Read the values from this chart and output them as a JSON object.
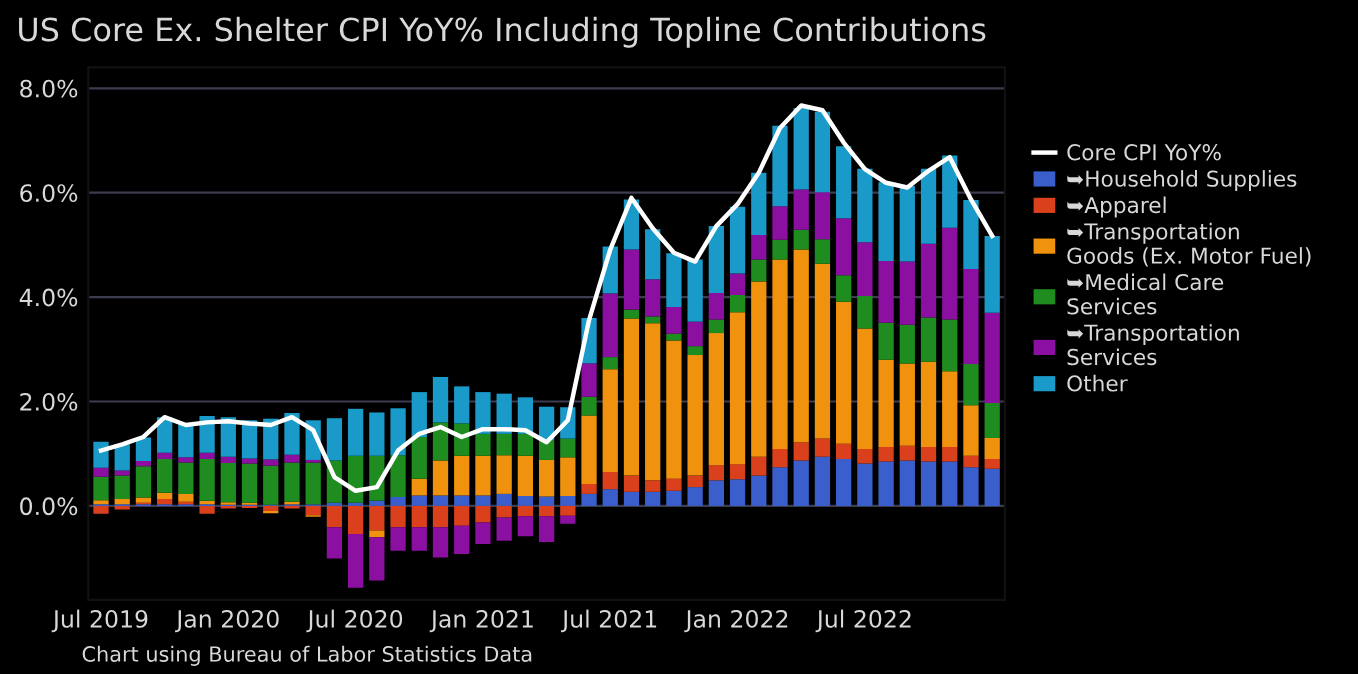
{
  "chart_data": {
    "type": "bar",
    "stacked": true,
    "title": "US Core Ex. Shelter CPI YoY% Including Topline Contributions",
    "categories": [
      "Jul 2019",
      null,
      null,
      null,
      null,
      null,
      "Jan 2020",
      null,
      null,
      null,
      null,
      null,
      "Jul 2020",
      null,
      null,
      null,
      null,
      null,
      "Jan 2021",
      null,
      null,
      null,
      null,
      null,
      "Jul 2021",
      null,
      null,
      null,
      null,
      null,
      "Jan 2022",
      null,
      null,
      null,
      null,
      null,
      "Jul 2022",
      null,
      null,
      null,
      null,
      null,
      null
    ],
    "series": [
      {
        "name": "Core CPI YoY%",
        "type": "line",
        "color": "#ffffff",
        "values": [
          1.06,
          1.18,
          1.32,
          1.7,
          1.55,
          1.6,
          1.62,
          1.58,
          1.55,
          1.7,
          1.45,
          0.55,
          0.29,
          0.36,
          1.06,
          1.38,
          1.51,
          1.32,
          1.47,
          1.47,
          1.45,
          1.22,
          1.64,
          3.56,
          4.91,
          5.9,
          5.32,
          4.85,
          4.68,
          5.36,
          5.78,
          6.38,
          7.24,
          7.67,
          7.58,
          6.96,
          6.45,
          6.19,
          6.1,
          6.42,
          6.68,
          5.87,
          5.17
        ]
      },
      {
        "name": "➥Household Supplies",
        "color": "#3a5fcd",
        "values": [
          0.03,
          0.03,
          0.03,
          0.03,
          0.03,
          0.03,
          0.02,
          0.02,
          0.02,
          0.03,
          0.03,
          0.06,
          0.06,
          0.1,
          0.17,
          0.2,
          0.2,
          0.2,
          0.2,
          0.23,
          0.19,
          0.18,
          0.19,
          0.23,
          0.32,
          0.27,
          0.27,
          0.29,
          0.36,
          0.49,
          0.51,
          0.58,
          0.74,
          0.87,
          0.94,
          0.9,
          0.81,
          0.85,
          0.87,
          0.85,
          0.85,
          0.74,
          0.71
        ]
      },
      {
        "name": "➥Apparel",
        "color": "#d9401b",
        "values": [
          -0.15,
          -0.07,
          0.03,
          0.1,
          0.05,
          -0.15,
          -0.05,
          -0.04,
          -0.1,
          -0.05,
          -0.18,
          -0.41,
          -0.54,
          -0.47,
          -0.41,
          -0.41,
          -0.41,
          -0.38,
          -0.32,
          -0.22,
          -0.2,
          -0.2,
          -0.19,
          0.19,
          0.33,
          0.31,
          0.22,
          0.23,
          0.22,
          0.29,
          0.29,
          0.36,
          0.35,
          0.35,
          0.35,
          0.29,
          0.28,
          0.28,
          0.28,
          0.28,
          0.28,
          0.22,
          0.19
        ]
      },
      {
        "name": "➥Transportation\nGoods (Ex. Motor Fuel)",
        "color": "#f0920e",
        "values": [
          0.08,
          0.1,
          0.1,
          0.12,
          0.15,
          0.07,
          0.05,
          0.04,
          -0.04,
          0.05,
          -0.03,
          0.0,
          0.0,
          -0.13,
          0.0,
          0.32,
          0.67,
          0.76,
          0.76,
          0.74,
          0.77,
          0.7,
          0.74,
          1.31,
          1.97,
          3.01,
          3.01,
          2.65,
          2.31,
          2.53,
          2.91,
          3.36,
          3.63,
          3.69,
          3.35,
          2.72,
          2.31,
          1.67,
          1.58,
          1.63,
          1.45,
          0.97,
          0.4
        ]
      },
      {
        "name": "➥Medical Care\nServices",
        "color": "#1e8c1e",
        "values": [
          0.45,
          0.45,
          0.6,
          0.65,
          0.6,
          0.8,
          0.75,
          0.75,
          0.75,
          0.75,
          0.8,
          0.81,
          0.9,
          0.86,
          0.8,
          0.8,
          0.73,
          0.62,
          0.42,
          0.41,
          0.42,
          0.38,
          0.36,
          0.36,
          0.23,
          0.17,
          0.13,
          0.13,
          0.17,
          0.26,
          0.33,
          0.42,
          0.38,
          0.38,
          0.47,
          0.51,
          0.62,
          0.71,
          0.74,
          0.85,
          0.99,
          0.79,
          0.67
        ]
      },
      {
        "name": "➥Transportation\nServices",
        "color": "#8b0fa0",
        "values": [
          0.17,
          0.1,
          0.1,
          0.12,
          0.1,
          0.12,
          0.12,
          0.1,
          0.12,
          0.15,
          0.05,
          -0.6,
          -1.03,
          -0.83,
          -0.45,
          -0.45,
          -0.58,
          -0.54,
          -0.41,
          -0.45,
          -0.38,
          -0.49,
          -0.15,
          0.64,
          1.22,
          1.15,
          0.71,
          0.51,
          0.47,
          0.51,
          0.41,
          0.47,
          0.64,
          0.77,
          0.9,
          1.09,
          1.03,
          1.18,
          1.21,
          1.41,
          1.76,
          1.82,
          1.73
        ]
      },
      {
        "name": "Other",
        "color": "#1a9ac8",
        "values": [
          0.5,
          0.5,
          0.45,
          0.68,
          0.65,
          0.7,
          0.76,
          0.73,
          0.78,
          0.8,
          0.76,
          0.81,
          0.9,
          0.83,
          0.9,
          0.86,
          0.87,
          0.71,
          0.8,
          0.77,
          0.7,
          0.64,
          0.6,
          0.87,
          0.9,
          0.96,
          0.96,
          1.03,
          1.19,
          1.28,
          1.28,
          1.19,
          1.54,
          1.56,
          1.54,
          1.38,
          1.41,
          1.51,
          1.45,
          1.44,
          1.38,
          1.32,
          1.47
        ]
      }
    ],
    "ylim": [
      -1.8,
      8.4
    ],
    "yticks": [
      {
        "value": 0,
        "label": "0.0%"
      },
      {
        "value": 2,
        "label": "2.0%"
      },
      {
        "value": 4,
        "label": "4.0%"
      },
      {
        "value": 6,
        "label": "6.0%"
      },
      {
        "value": 8,
        "label": "8.0%"
      }
    ],
    "grid": "y",
    "legend": "right",
    "marker": "none",
    "line_style": "solid",
    "annotations": [
      "Chart using Bureau of Labor Statistics Data"
    ]
  }
}
